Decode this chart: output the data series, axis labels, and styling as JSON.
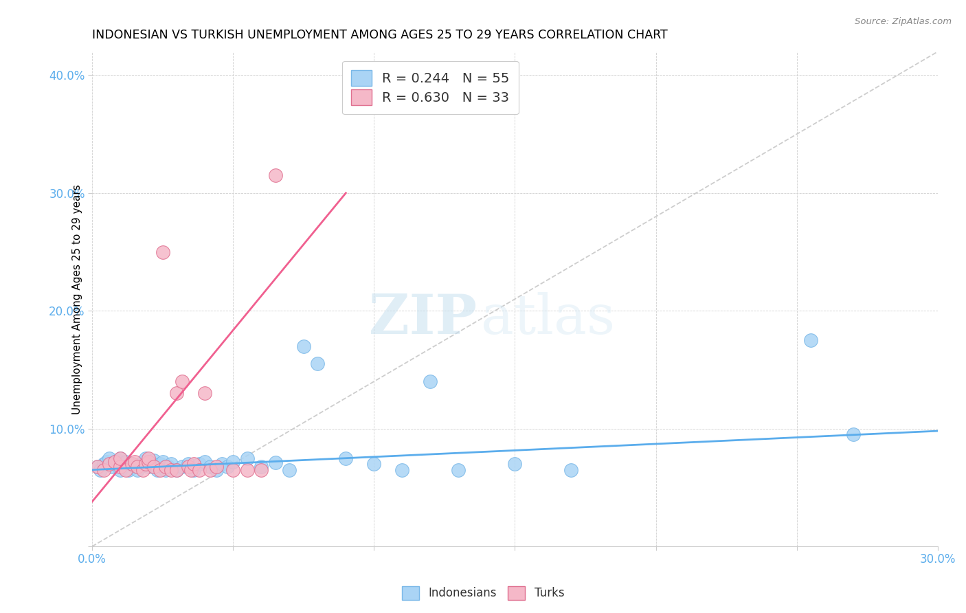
{
  "title": "INDONESIAN VS TURKISH UNEMPLOYMENT AMONG AGES 25 TO 29 YEARS CORRELATION CHART",
  "source": "Source: ZipAtlas.com",
  "ylabel": "Unemployment Among Ages 25 to 29 years",
  "xlim": [
    0.0,
    0.3
  ],
  "ylim": [
    0.0,
    0.42
  ],
  "xticks": [
    0.0,
    0.05,
    0.1,
    0.15,
    0.2,
    0.25,
    0.3
  ],
  "yticks": [
    0.0,
    0.1,
    0.2,
    0.3,
    0.4
  ],
  "xticklabels": [
    "0.0%",
    "",
    "",
    "",
    "",
    "",
    "30.0%"
  ],
  "yticklabels": [
    "",
    "10.0%",
    "20.0%",
    "30.0%",
    "40.0%"
  ],
  "indonesian_color": "#aad4f5",
  "indonesian_edge": "#7ab8e8",
  "turkish_color": "#f5b8c8",
  "turkish_edge": "#e07090",
  "line_blue_color": "#5badec",
  "line_pink_color": "#f06090",
  "diag_color": "#c8c8c8",
  "watermark_color": "#daeef8",
  "indonesian_x": [
    0.002,
    0.003,
    0.004,
    0.005,
    0.006,
    0.007,
    0.008,
    0.009,
    0.01,
    0.01,
    0.01,
    0.011,
    0.012,
    0.013,
    0.014,
    0.015,
    0.016,
    0.017,
    0.018,
    0.019,
    0.02,
    0.021,
    0.022,
    0.023,
    0.024,
    0.025,
    0.026,
    0.027,
    0.028,
    0.03,
    0.032,
    0.034,
    0.036,
    0.038,
    0.04,
    0.042,
    0.044,
    0.046,
    0.048,
    0.05,
    0.055,
    0.06,
    0.065,
    0.07,
    0.075,
    0.08,
    0.09,
    0.1,
    0.11,
    0.12,
    0.13,
    0.15,
    0.17,
    0.255,
    0.27
  ],
  "indonesian_y": [
    0.068,
    0.065,
    0.07,
    0.072,
    0.075,
    0.068,
    0.071,
    0.073,
    0.065,
    0.07,
    0.075,
    0.068,
    0.072,
    0.065,
    0.07,
    0.068,
    0.065,
    0.07,
    0.072,
    0.075,
    0.068,
    0.071,
    0.073,
    0.065,
    0.07,
    0.072,
    0.065,
    0.068,
    0.07,
    0.065,
    0.068,
    0.07,
    0.065,
    0.07,
    0.072,
    0.068,
    0.065,
    0.07,
    0.068,
    0.072,
    0.075,
    0.068,
    0.071,
    0.065,
    0.17,
    0.155,
    0.075,
    0.07,
    0.065,
    0.14,
    0.065,
    0.07,
    0.065,
    0.175,
    0.095
  ],
  "turkish_x": [
    0.002,
    0.004,
    0.006,
    0.008,
    0.01,
    0.01,
    0.012,
    0.014,
    0.015,
    0.016,
    0.018,
    0.019,
    0.02,
    0.02,
    0.022,
    0.024,
    0.025,
    0.026,
    0.028,
    0.03,
    0.03,
    0.032,
    0.034,
    0.035,
    0.036,
    0.038,
    0.04,
    0.042,
    0.044,
    0.05,
    0.055,
    0.06,
    0.065
  ],
  "turkish_y": [
    0.068,
    0.065,
    0.07,
    0.072,
    0.068,
    0.075,
    0.065,
    0.07,
    0.072,
    0.068,
    0.065,
    0.07,
    0.072,
    0.075,
    0.068,
    0.065,
    0.25,
    0.068,
    0.065,
    0.065,
    0.13,
    0.14,
    0.068,
    0.065,
    0.07,
    0.065,
    0.13,
    0.065,
    0.068,
    0.065,
    0.065,
    0.065,
    0.315
  ],
  "blue_line_x": [
    0.0,
    0.3
  ],
  "blue_line_y": [
    0.065,
    0.098
  ],
  "pink_line_x": [
    0.0,
    0.09
  ],
  "pink_line_y": [
    0.038,
    0.3
  ],
  "diag_line_x": [
    0.0,
    0.3
  ],
  "diag_line_y": [
    0.0,
    0.42
  ],
  "legend_label_1": "R = 0.244   N = 55",
  "legend_label_2": "R = 0.630   N = 33",
  "watermark_zip": "ZIP",
  "watermark_atlas": "atlas"
}
